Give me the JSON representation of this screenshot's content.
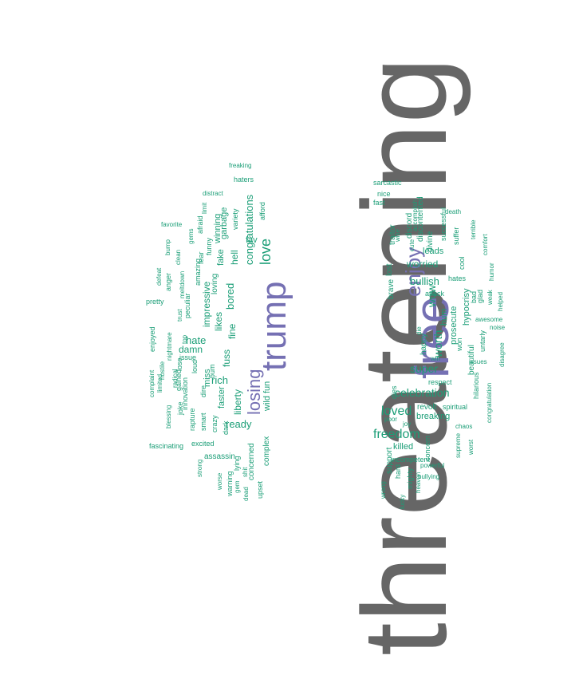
{
  "colors": {
    "primary": "#666666",
    "accent": "#7570b3",
    "word": "#1b9e77"
  },
  "words": [
    {
      "text": "threatening",
      "color": "primary"
    },
    {
      "text": "free",
      "color": "accent"
    },
    {
      "text": "trump",
      "color": "accent"
    },
    {
      "text": "enjoy",
      "color": "accent"
    },
    {
      "text": "losing",
      "color": "accent"
    },
    {
      "text": "freedom",
      "color": "word"
    },
    {
      "text": "loved",
      "color": "word"
    },
    {
      "text": "celebration",
      "color": "word"
    },
    {
      "text": "super",
      "color": "word"
    },
    {
      "text": "love",
      "color": "word"
    },
    {
      "text": "bullish",
      "color": "word"
    },
    {
      "text": "wow",
      "color": "word"
    },
    {
      "text": "worth",
      "color": "word"
    },
    {
      "text": "congratulations",
      "color": "word"
    },
    {
      "text": "bored",
      "color": "word"
    },
    {
      "text": "hate",
      "color": "word"
    },
    {
      "text": "rich",
      "color": "word"
    },
    {
      "text": "ready",
      "color": "word"
    },
    {
      "text": "impressive",
      "color": "word"
    },
    {
      "text": "worried",
      "color": "word"
    },
    {
      "text": "breaking",
      "color": "word"
    },
    {
      "text": "fine",
      "color": "word"
    },
    {
      "text": "likes",
      "color": "word"
    },
    {
      "text": "damn",
      "color": "word"
    },
    {
      "text": "fuss",
      "color": "word"
    },
    {
      "text": "hell",
      "color": "word"
    },
    {
      "text": "garbage",
      "color": "word"
    },
    {
      "text": "liberty",
      "color": "word"
    },
    {
      "text": "faster",
      "color": "word"
    },
    {
      "text": "hypocrisy",
      "color": "word"
    },
    {
      "text": "prosecute",
      "color": "word"
    },
    {
      "text": "killed",
      "color": "word"
    },
    {
      "text": "leads",
      "color": "word"
    },
    {
      "text": "hum",
      "color": "word"
    },
    {
      "text": "wild fun",
      "color": "word"
    },
    {
      "text": "miss",
      "color": "word"
    },
    {
      "text": "fake",
      "color": "word"
    },
    {
      "text": "winning",
      "color": "word"
    },
    {
      "text": "fav",
      "color": "word"
    },
    {
      "text": "complex",
      "color": "word"
    },
    {
      "text": "concerned",
      "color": "word"
    },
    {
      "text": "assassin",
      "color": "word"
    },
    {
      "text": "beautiful",
      "color": "word"
    },
    {
      "text": "revolt",
      "color": "word"
    },
    {
      "text": "loving",
      "color": "word"
    },
    {
      "text": "happy",
      "color": "word"
    },
    {
      "text": "discontented",
      "color": "word"
    },
    {
      "text": "traitor",
      "color": "word"
    },
    {
      "text": "brave",
      "color": "word"
    },
    {
      "text": "lost",
      "color": "word"
    },
    {
      "text": "discord",
      "color": "word"
    },
    {
      "text": "divine",
      "color": "word"
    },
    {
      "text": "successful",
      "color": "word"
    },
    {
      "text": "support",
      "color": "word"
    },
    {
      "text": "incompetent",
      "color": "word"
    },
    {
      "text": "concern",
      "color": "word"
    },
    {
      "text": "spiritual",
      "color": "word"
    },
    {
      "text": "variety",
      "color": "word"
    },
    {
      "text": "afford",
      "color": "word"
    },
    {
      "text": "crazy",
      "color": "word"
    },
    {
      "text": "dark",
      "color": "word"
    },
    {
      "text": "smart",
      "color": "word"
    },
    {
      "text": "dire",
      "color": "word"
    },
    {
      "text": "bum",
      "color": "word"
    },
    {
      "text": "peculiar",
      "color": "word"
    },
    {
      "text": "amazing",
      "color": "word"
    },
    {
      "text": "fear",
      "color": "word"
    },
    {
      "text": "funny",
      "color": "word"
    },
    {
      "text": "afraid",
      "color": "word"
    },
    {
      "text": "issue",
      "color": "word"
    },
    {
      "text": "loud",
      "color": "word"
    },
    {
      "text": "innovation",
      "color": "word"
    },
    {
      "text": "rapture",
      "color": "word"
    },
    {
      "text": "excited",
      "color": "word"
    },
    {
      "text": "upset",
      "color": "word"
    },
    {
      "text": "lying",
      "color": "word"
    },
    {
      "text": "warning",
      "color": "word"
    },
    {
      "text": "hates",
      "color": "word"
    },
    {
      "text": "cool",
      "color": "word"
    },
    {
      "text": "suffer",
      "color": "word"
    },
    {
      "text": "bad",
      "color": "word"
    },
    {
      "text": "glad",
      "color": "word"
    },
    {
      "text": "attack",
      "color": "word"
    },
    {
      "text": "respect",
      "color": "word"
    },
    {
      "text": "dies",
      "color": "word"
    },
    {
      "text": "untarly",
      "color": "word"
    },
    {
      "text": "won",
      "color": "word"
    },
    {
      "text": "hilarious",
      "color": "word"
    },
    {
      "text": "fast",
      "color": "word"
    },
    {
      "text": "nice",
      "color": "word"
    },
    {
      "text": "sarcastic",
      "color": "word"
    },
    {
      "text": "haters",
      "color": "word"
    },
    {
      "text": "freaking",
      "color": "word"
    },
    {
      "text": "distract",
      "color": "word"
    },
    {
      "text": "limit",
      "color": "word"
    },
    {
      "text": "favorite",
      "color": "word"
    },
    {
      "text": "gems",
      "color": "word"
    },
    {
      "text": "clean",
      "color": "word"
    },
    {
      "text": "bump",
      "color": "word"
    },
    {
      "text": "meltdown",
      "color": "word"
    },
    {
      "text": "anger",
      "color": "word"
    },
    {
      "text": "defeat",
      "color": "word"
    },
    {
      "text": "pretty",
      "color": "word"
    },
    {
      "text": "trust",
      "color": "word"
    },
    {
      "text": "top",
      "color": "word"
    },
    {
      "text": "radical",
      "color": "word"
    },
    {
      "text": "nightmare",
      "color": "word"
    },
    {
      "text": "enjoyed",
      "color": "word"
    },
    {
      "text": "hostile",
      "color": "word"
    },
    {
      "text": "limited",
      "color": "word"
    },
    {
      "text": "complaint",
      "color": "word"
    },
    {
      "text": "gained",
      "color": "word"
    },
    {
      "text": "lose",
      "color": "word"
    },
    {
      "text": "joke",
      "color": "word"
    },
    {
      "text": "blessing",
      "color": "word"
    },
    {
      "text": "fascinating",
      "color": "word"
    },
    {
      "text": "strong",
      "color": "word"
    },
    {
      "text": "worse",
      "color": "word"
    },
    {
      "text": "gem",
      "color": "word"
    },
    {
      "text": "shit",
      "color": "word"
    },
    {
      "text": "dead",
      "color": "word"
    },
    {
      "text": "accomplish",
      "color": "word"
    },
    {
      "text": "wise",
      "color": "word"
    },
    {
      "text": "cute",
      "color": "word"
    },
    {
      "text": "death",
      "color": "word"
    },
    {
      "text": "terrible",
      "color": "word"
    },
    {
      "text": "comfort",
      "color": "word"
    },
    {
      "text": "weak",
      "color": "word"
    },
    {
      "text": "humor",
      "color": "word"
    },
    {
      "text": "helped",
      "color": "word"
    },
    {
      "text": "awesome",
      "color": "word"
    },
    {
      "text": "noise",
      "color": "word"
    },
    {
      "text": "disagree",
      "color": "word"
    },
    {
      "text": "win",
      "color": "word"
    },
    {
      "text": "issues",
      "color": "word"
    },
    {
      "text": "congratulation",
      "color": "word"
    },
    {
      "text": "chaos",
      "color": "word"
    },
    {
      "text": "supreme",
      "color": "word"
    },
    {
      "text": "worst",
      "color": "word"
    },
    {
      "text": "powerful",
      "color": "word"
    },
    {
      "text": "bullying",
      "color": "word"
    },
    {
      "text": "heaven",
      "color": "word"
    },
    {
      "text": "mighty",
      "color": "word"
    },
    {
      "text": "lucky",
      "color": "word"
    },
    {
      "text": "hard",
      "color": "word"
    },
    {
      "text": "wrong",
      "color": "word"
    },
    {
      "text": "joy",
      "color": "word"
    },
    {
      "text": "poor",
      "color": "word"
    },
    {
      "text": "die",
      "color": "word"
    }
  ]
}
